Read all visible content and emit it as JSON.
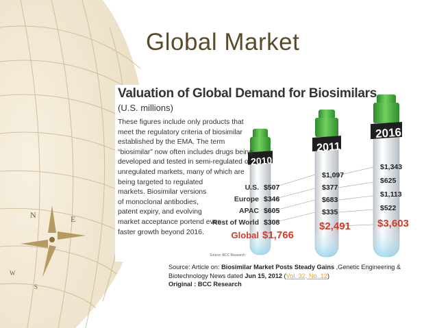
{
  "slide": {
    "title": "Global Market"
  },
  "chart_data": {
    "type": "table",
    "title": "Valuation of Global Demand for Biosimilars",
    "subtitle": "(U.S. millions)",
    "description_lines": [
      "These figures include only products that",
      "meet the regulatory criteria of biosimilar",
      "established by the EMA. The term",
      "“biosimilar” now often includes drugs being",
      "developed and tested in semi-regulated or",
      "unregulated markets, many of which are",
      "being targeted to regulated",
      "markets. Biosimilar versions",
      "of monoclonal antibodies,",
      "patent expiry, and evolving",
      "market acceptance portend even",
      "faster growth beyond 2016."
    ],
    "regions": [
      "U.S.",
      "Europe",
      "APAC",
      "Rest of World",
      "Global"
    ],
    "series": [
      {
        "name": "2010",
        "values": [
          "$507",
          "$346",
          "$605",
          "$308",
          "$1,766"
        ]
      },
      {
        "name": "2011",
        "values": [
          "$1,097",
          "$377",
          "$683",
          "$335",
          "$2,491"
        ]
      },
      {
        "name": "2016",
        "values": [
          "$1,343",
          "$625",
          "$1,113",
          "$522",
          "$3,603"
        ]
      }
    ],
    "figure_source": "Source: BCC Research"
  },
  "source_note": {
    "l1_prefix": "Source:  Article on: ",
    "l1_bold": "Biosimilar Market Posts Steady Gains",
    "l1_suffix": " ,Genetic Engineering &",
    "l2_prefix": "Biotechnology News dated ",
    "l2_bold": "Jun 15, 2012",
    "l2_open": " (",
    "l2_link": "Vol. 32, No. 12",
    "l2_close": ")",
    "l3": "Original  : BCC Research"
  },
  "colors": {
    "title": "#5a4a2a",
    "accent_red": "#d23b2a",
    "tube_cap": "#3aa935",
    "link": "#e8a43a"
  }
}
